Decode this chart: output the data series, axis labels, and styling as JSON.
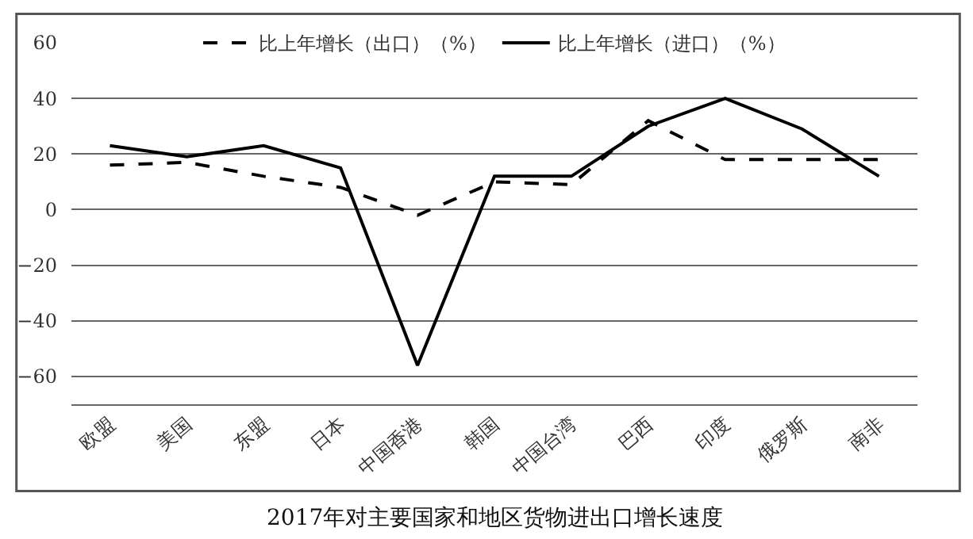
{
  "chart_data": {
    "type": "line",
    "title": "2017年对主要国家和地区货物进出口增长速度",
    "categories": [
      "欧盟",
      "美国",
      "东盟",
      "日本",
      "中国香港",
      "韩国",
      "中国台湾",
      "巴西",
      "印度",
      "俄罗斯",
      "南非"
    ],
    "series": [
      {
        "name": "比上年增长（出口）（%）",
        "color": "#000000",
        "line_style": "dashed",
        "values": [
          16,
          17,
          12,
          8,
          -2,
          10,
          9,
          32,
          18,
          18,
          18
        ]
      },
      {
        "name": "比上年增长（进口）（%）",
        "color": "#000000",
        "line_style": "solid",
        "values": [
          23,
          19,
          23,
          15,
          -56,
          12,
          12,
          30,
          40,
          29,
          12
        ]
      }
    ],
    "ylim": [
      -70,
      60
    ],
    "yticks": [
      -60,
      -40,
      -20,
      0,
      20,
      40,
      60
    ],
    "grid": "y",
    "legend": "top",
    "marker": "none"
  }
}
